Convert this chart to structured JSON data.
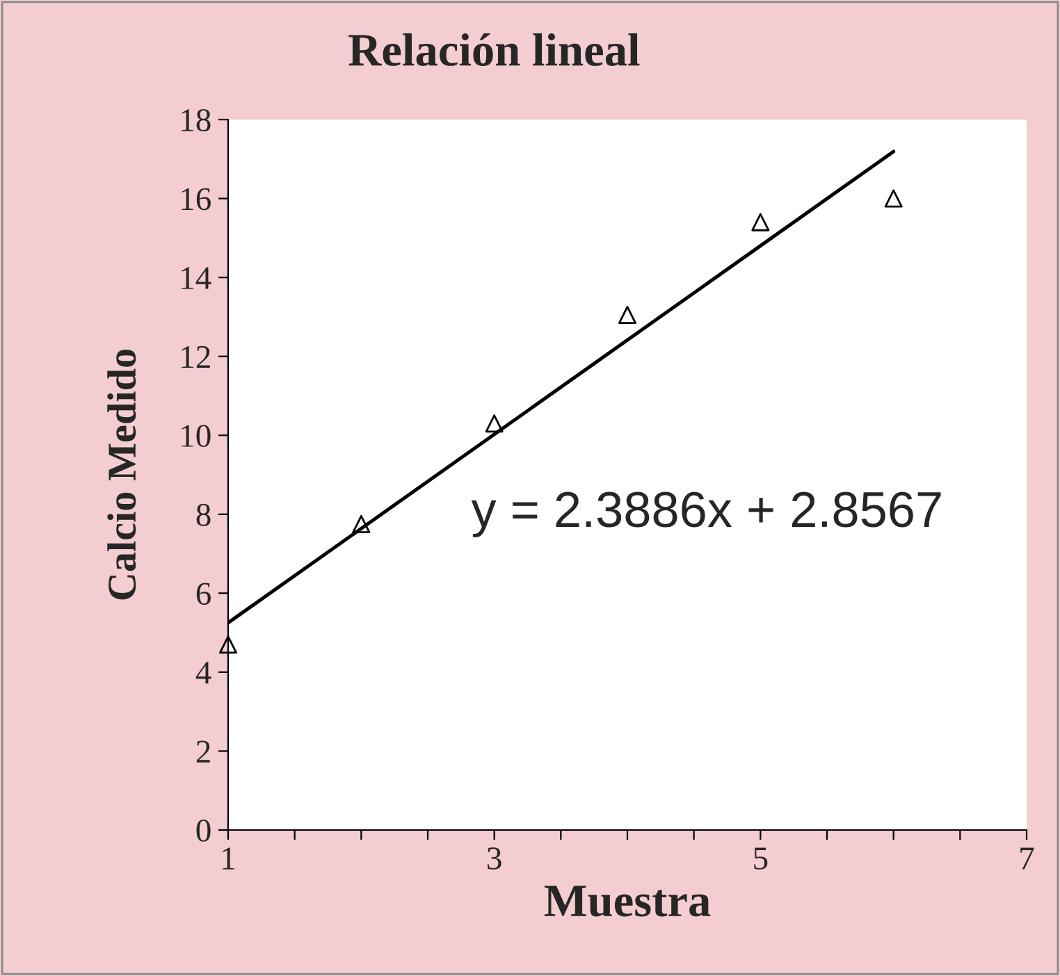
{
  "chart_data": {
    "type": "scatter",
    "title": "Relación lineal",
    "xlabel": "Muestra",
    "ylabel": "Calcio Medido",
    "series": [
      {
        "color": "#000000",
        "marker": "triangle",
        "x": [
          1,
          2,
          3,
          4,
          5,
          6
        ],
        "values": [
          4.7,
          7.75,
          10.3,
          13.05,
          15.4,
          16.0
        ]
      },
      {
        "type": "line",
        "color": "#000000",
        "marker": "none",
        "line_style": "solid",
        "x": [
          1,
          6
        ],
        "values": [
          5.25,
          17.19
        ]
      }
    ],
    "annotations": [
      "y = 2.3886x + 2.8567"
    ],
    "xlim": [
      1,
      7
    ],
    "ylim": [
      0,
      18
    ],
    "xticks": [
      1,
      {
        "value": 1.5,
        "label": null
      },
      {
        "value": 2,
        "label": null
      },
      {
        "value": 2.5,
        "label": null
      },
      3,
      {
        "value": 3.5,
        "label": null
      },
      {
        "value": 4,
        "label": null
      },
      {
        "value": 4.5,
        "label": null
      },
      5,
      {
        "value": 5.5,
        "label": null
      },
      {
        "value": 6,
        "label": null
      },
      {
        "value": 6.5,
        "label": null
      },
      7
    ],
    "yticks": [
      0,
      2,
      4,
      6,
      8,
      10,
      12,
      14,
      16,
      18
    ],
    "grid": false,
    "legend": false
  }
}
